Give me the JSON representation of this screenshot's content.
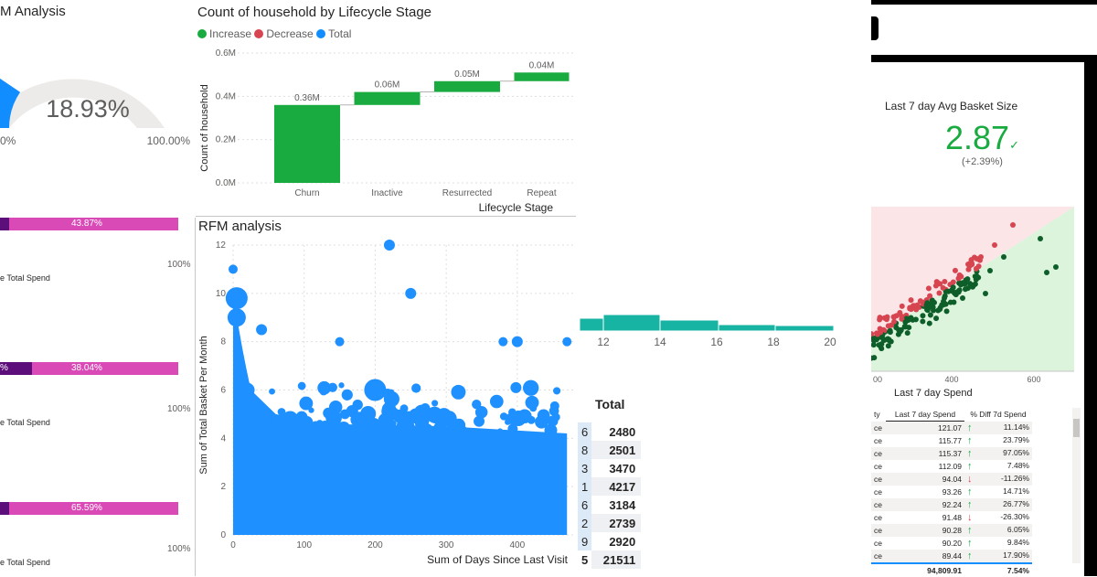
{
  "gauge": {
    "title": "M Analysis",
    "value": "18.93%",
    "min": "0%",
    "max": "100.00%",
    "fraction": 0.1893
  },
  "waterfall": {
    "title": "Count of household by Lifecycle Stage",
    "legend": [
      {
        "label": "Increase",
        "color": "#1aab40"
      },
      {
        "label": "Decrease",
        "color": "#d64550"
      },
      {
        "label": "Total",
        "color": "#118dff"
      }
    ],
    "ylabel": "Count of household",
    "xlabel": "Lifecycle Stage",
    "yticks": [
      "0.0M",
      "0.2M",
      "0.4M",
      "0.6M"
    ],
    "chart_data": {
      "type": "waterfall",
      "categories": [
        "Churn",
        "Inactive",
        "Resurrected",
        "Repeat"
      ],
      "values": [
        0.36,
        0.06,
        0.05,
        0.04
      ],
      "labels": [
        "0.36M",
        "0.06M",
        "0.05M",
        "0.04M"
      ],
      "ylim": [
        0,
        0.6
      ]
    }
  },
  "segments": [
    {
      "pct": "43.87%",
      "fraction": 0.4387,
      "label": "e Total Spend",
      "max": "100%"
    },
    {
      "pct": "38.04%",
      "lead": "%",
      "fraction": 0.3804,
      "label": "e Total Spend",
      "max": "100%"
    },
    {
      "pct": "65.59%",
      "fraction": 0.6559,
      "label": "e Total Spend",
      "max": "100%"
    }
  ],
  "rfm": {
    "title": "RFM analysis",
    "ylabel": "Sum of Total Basket Per Month",
    "xlabel": "Sum of Days Since Last Visit",
    "yticks": [
      "0",
      "2",
      "4",
      "6",
      "8",
      "10",
      "12"
    ],
    "xticks": [
      "0",
      "100",
      "200",
      "300",
      "400"
    ]
  },
  "histogram": {
    "xticks": [
      "12",
      "14",
      "16",
      "18",
      "20"
    ]
  },
  "totals": {
    "header": "Total",
    "rows": [
      {
        "left": "6",
        "value": "2480"
      },
      {
        "left": "8",
        "value": "2501"
      },
      {
        "left": "3",
        "value": "3470"
      },
      {
        "left": "1",
        "value": "4217"
      },
      {
        "left": "6",
        "value": "3184"
      },
      {
        "left": "2",
        "value": "2739"
      },
      {
        "left": "9",
        "value": "2920"
      },
      {
        "left": "5",
        "value": "21511"
      }
    ]
  },
  "kpi": {
    "title": "Last 7 day Avg Basket Size",
    "value": "2.87",
    "check": "✓",
    "change": "(+2.39%)",
    "color": "#1aab40"
  },
  "scatter2": {
    "xlabel": "Last 7 day Spend",
    "xticks": [
      "00",
      "400",
      "600"
    ]
  },
  "spend_table": {
    "headers": [
      "ty",
      "Last 7 day Spend",
      "% Diff 7d Spend"
    ],
    "rows": [
      {
        "c": "ce",
        "spend": "121.07",
        "dir": "up",
        "diff": "11.14%"
      },
      {
        "c": "ce",
        "spend": "115.77",
        "dir": "up",
        "diff": "23.79%"
      },
      {
        "c": "ce",
        "spend": "115.37",
        "dir": "up",
        "diff": "97.05%"
      },
      {
        "c": "ce",
        "spend": "112.09",
        "dir": "up",
        "diff": "7.48%"
      },
      {
        "c": "ce",
        "spend": "94.04",
        "dir": "down",
        "diff": "-11.26%"
      },
      {
        "c": "ce",
        "spend": "93.26",
        "dir": "up",
        "diff": "14.71%"
      },
      {
        "c": "ce",
        "spend": "92.24",
        "dir": "up",
        "diff": "26.77%"
      },
      {
        "c": "ce",
        "spend": "91.48",
        "dir": "down",
        "diff": "-26.30%"
      },
      {
        "c": "ce",
        "spend": "90.28",
        "dir": "up",
        "diff": "6.05%"
      },
      {
        "c": "ce",
        "spend": "90.20",
        "dir": "up",
        "diff": "9.84%"
      },
      {
        "c": "ce",
        "spend": "89.44",
        "dir": "up",
        "diff": "17.90%"
      }
    ],
    "total_spend": "94,809.91",
    "total_diff": "7.54%"
  },
  "colors": {
    "blue": "#118dff",
    "green": "#1aab40",
    "red": "#d64550",
    "magenta": "#d94ab7",
    "purple": "#5c0f7a",
    "teal": "#17b3a3",
    "darkgreen": "#0e5e2a"
  }
}
